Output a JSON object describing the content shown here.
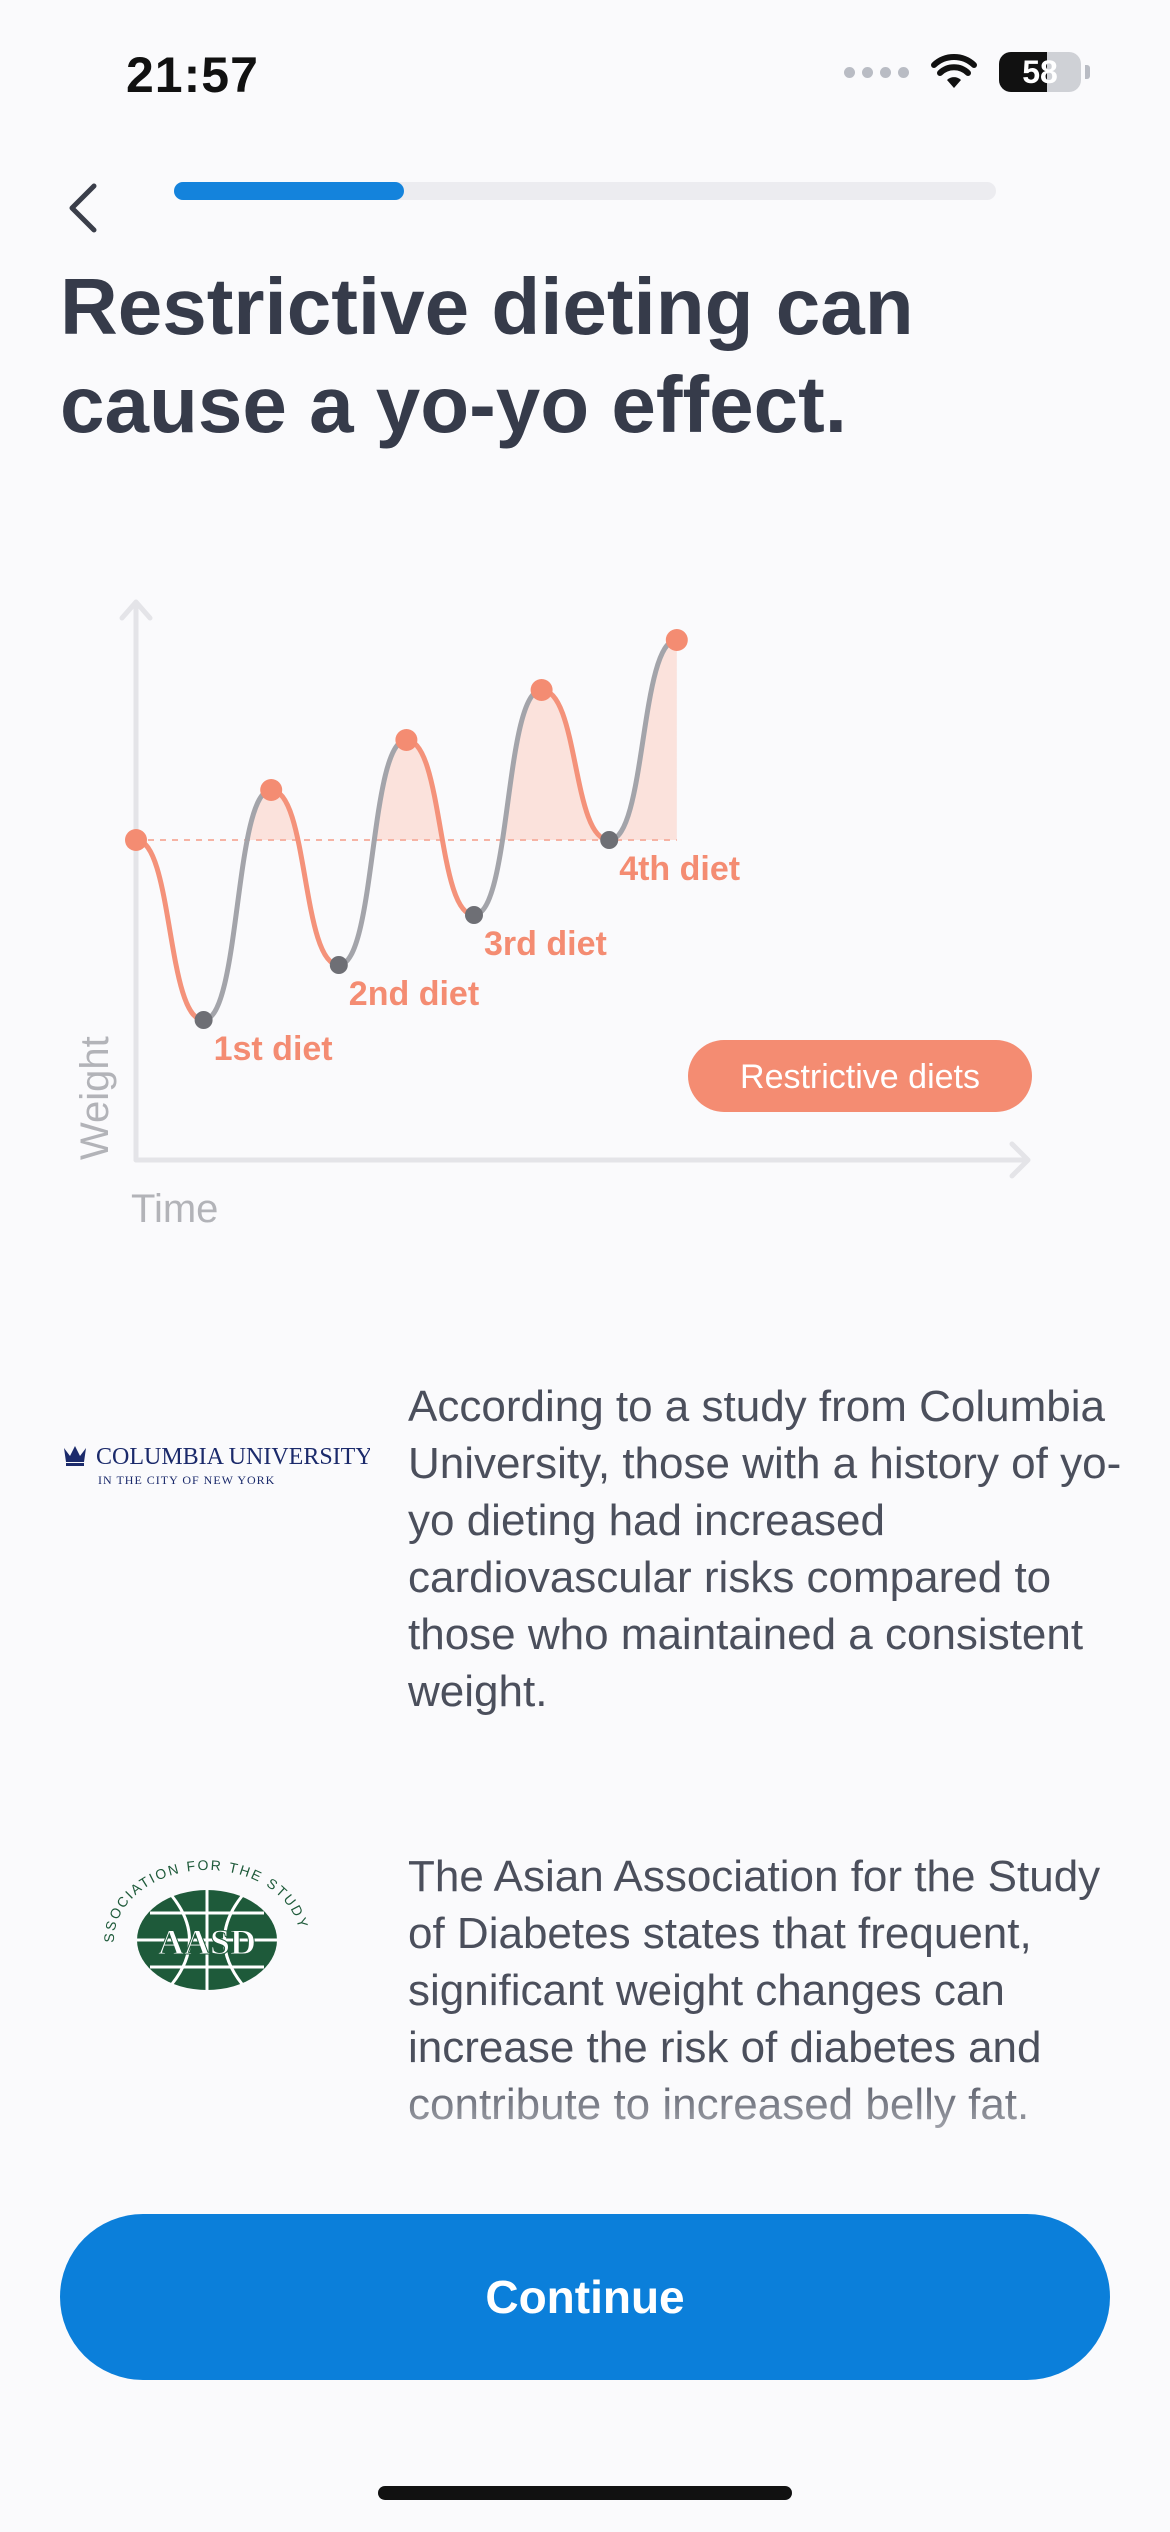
{
  "status_bar": {
    "time": "21:57",
    "battery_level": "58",
    "icons": [
      "signal-dots-icon",
      "wifi-icon",
      "battery-icon"
    ]
  },
  "nav": {
    "back_icon": "chevron-left-icon",
    "progress": 0.28
  },
  "title": "Restrictive dieting can cause a yo-yo effect.",
  "chart_data": {
    "type": "line",
    "title": "",
    "xlabel": "Time",
    "ylabel": "Weight",
    "baseline_label": "",
    "legend": [
      "Restrictive diets"
    ],
    "annotations": [
      "1st diet",
      "2nd diet",
      "3rd diet",
      "4th diet"
    ],
    "series": [
      {
        "name": "Restrictive diets",
        "points": [
          {
            "t": 0,
            "w": 0,
            "marker": "peak"
          },
          {
            "t": 1,
            "w": -3.6,
            "marker": "trough",
            "label": "1st diet"
          },
          {
            "t": 2,
            "w": 1.0,
            "marker": "peak"
          },
          {
            "t": 3,
            "w": -2.5,
            "marker": "trough",
            "label": "2nd diet"
          },
          {
            "t": 4,
            "w": 2.0,
            "marker": "peak"
          },
          {
            "t": 5,
            "w": -1.5,
            "marker": "trough",
            "label": "3rd diet"
          },
          {
            "t": 6,
            "w": 3.0,
            "marker": "peak"
          },
          {
            "t": 7,
            "w": 0,
            "marker": "trough",
            "label": "4th diet"
          },
          {
            "t": 8,
            "w": 4.0,
            "marker": "peak"
          }
        ]
      }
    ],
    "colors": {
      "loss_line": "#f4927a",
      "regain_line": "#a3a4aa",
      "fill": "#fbe2dc",
      "trough_marker": "#6e6f75",
      "peak_marker": "#f48c72",
      "axis": "#e4e4e8",
      "axis_label": "#b2b3b8"
    }
  },
  "sources": [
    {
      "logo_icon": "columbia-university-logo-icon",
      "logo_text": "COLUMBIA UNIVERSITY",
      "logo_subtext": "IN THE CITY OF NEW YORK",
      "text": "According to a study from Columbia University, those with a history of yo-yo dieting had increased cardiovascular risks compared to those who maintained a consistent weight."
    },
    {
      "logo_icon": "aasd-logo-icon",
      "logo_text": "THE ASIAN ASSOCIATION FOR THE STUDY OF DIABETES",
      "text": "The Asian Association for the Study of Diabetes states that frequent, significant weight changes can increase the risk of diabetes and contribute to increased belly fat."
    }
  ],
  "cta": {
    "label": "Continue",
    "color": "#0b7fda"
  }
}
